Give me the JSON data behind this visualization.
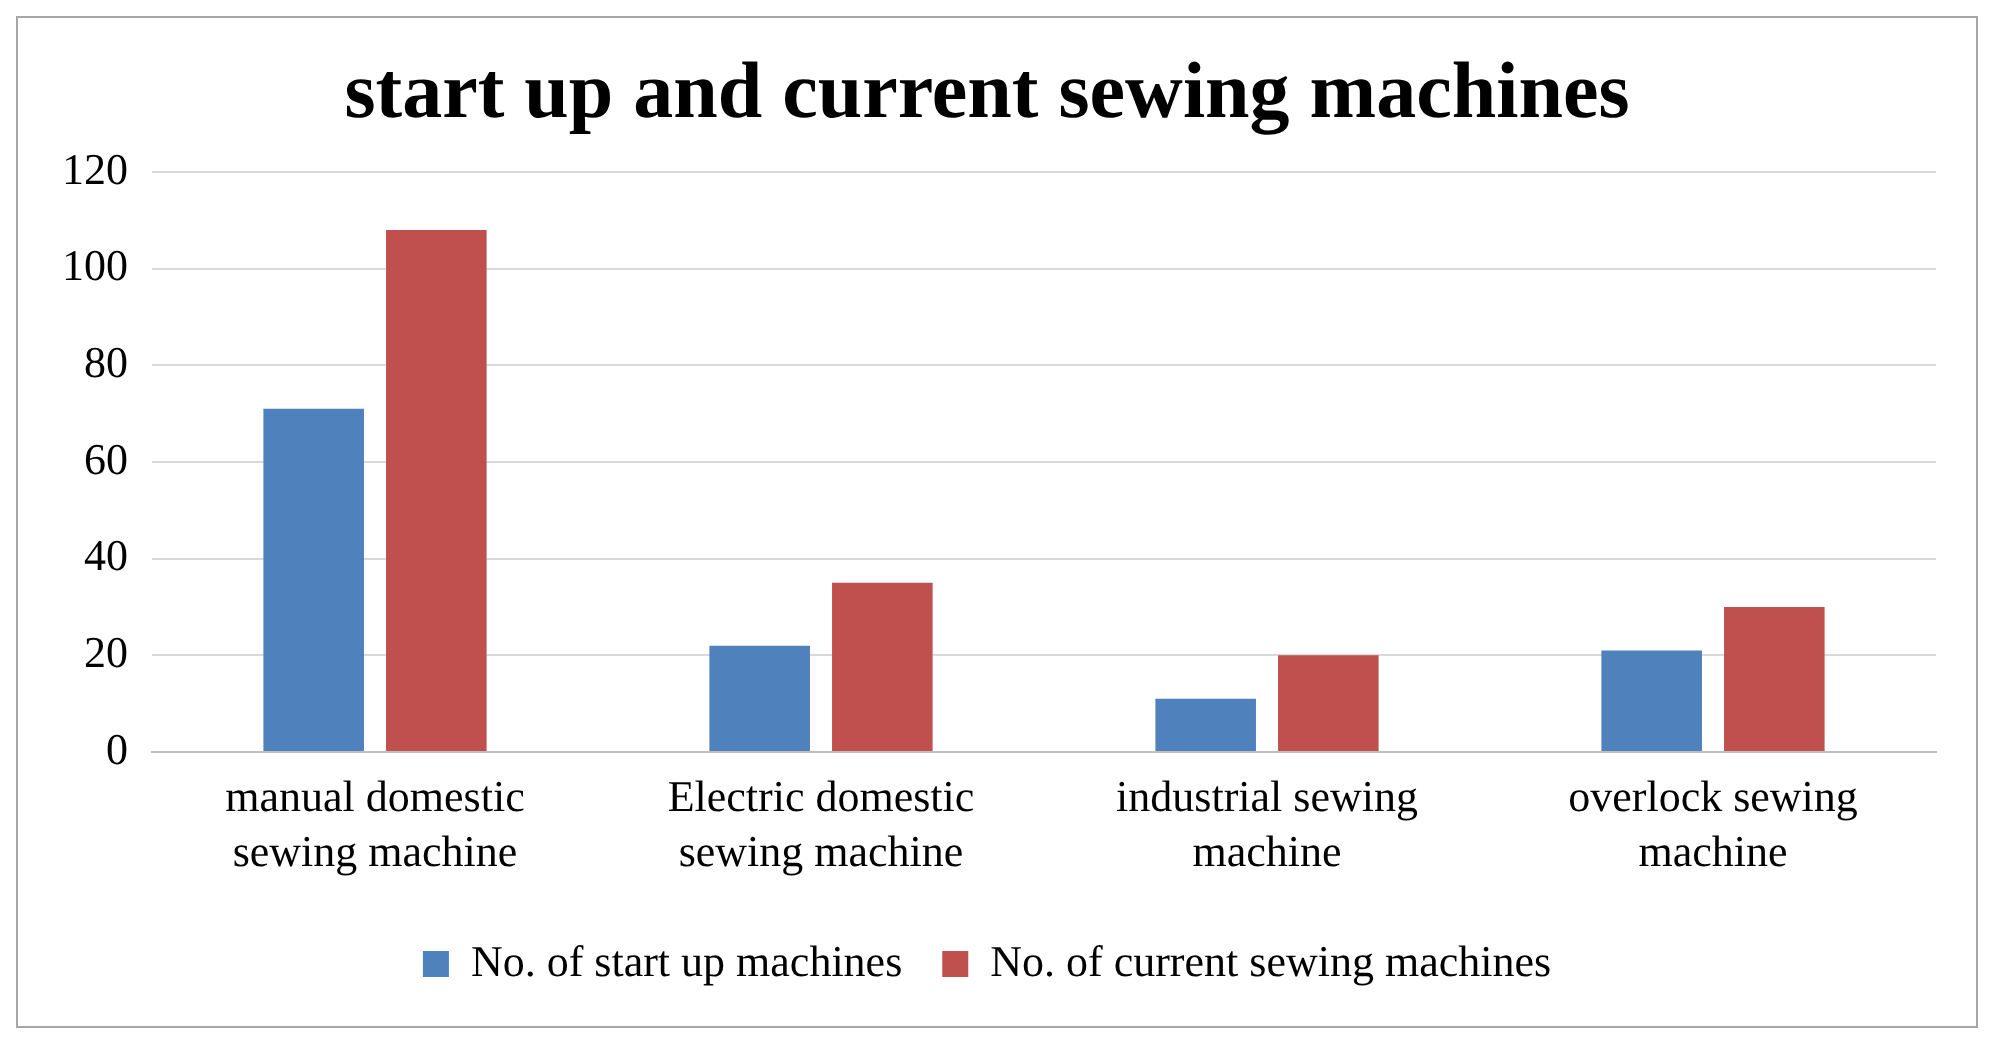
{
  "chart_data": {
    "type": "bar",
    "title": "start up and current sewing machines",
    "categories": [
      "manual domestic sewing machine",
      "Electric domestic sewing machine",
      "industrial sewing machine",
      "overlock sewing machine"
    ],
    "series": [
      {
        "name": "No. of start up machines",
        "color": "#4f81bd",
        "values": [
          71,
          22,
          11,
          21
        ]
      },
      {
        "name": "No. of current sewing machines",
        "color": "#c0504d",
        "values": [
          108,
          35,
          20,
          30
        ]
      }
    ],
    "ylim": [
      0,
      120
    ],
    "yticks": [
      0,
      20,
      40,
      60,
      80,
      100,
      120
    ],
    "grid": "y",
    "legend": "bottom"
  }
}
